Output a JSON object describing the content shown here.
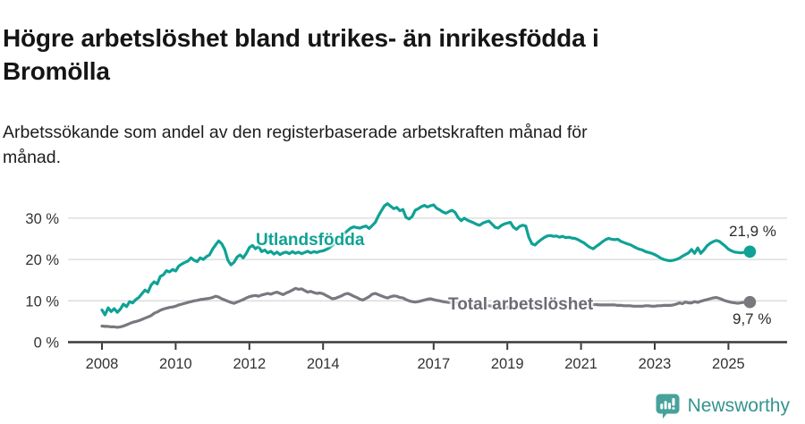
{
  "header": {
    "title": "Högre arbetslöshet bland utrikes- än inrikesfödda i\nBromölla",
    "subtitle": "Arbetssökande som andel av den registerbaserade arbetskraften månad för\nmånad."
  },
  "footer": {
    "brand": "Newsworthy"
  },
  "chart_data": {
    "type": "line",
    "title": "Högre arbetslöshet bland utrikes- än inrikesfödda i Bromölla",
    "subtitle": "Arbetssökande som andel av den registerbaserade arbetskraften månad för månad.",
    "unit": "%",
    "frequency": "monthly",
    "x_start_year": 2008,
    "x_end": "2025-08",
    "xlim": [
      2007.8,
      2025.9
    ],
    "ylim": [
      0,
      35
    ],
    "grid": "horizontal",
    "legend_position": "inline-annotations",
    "x_ticks": [
      {
        "year": 2008,
        "label": "2008"
      },
      {
        "year": 2010,
        "label": "2010"
      },
      {
        "year": 2012,
        "label": "2012"
      },
      {
        "year": 2014,
        "label": "2014"
      },
      {
        "year": 2017,
        "label": "2017"
      },
      {
        "year": 2019,
        "label": "2019"
      },
      {
        "year": 2021,
        "label": "2021"
      },
      {
        "year": 2023,
        "label": "2023"
      },
      {
        "year": 2025,
        "label": "2025"
      }
    ],
    "y_ticks": [
      {
        "value": 0,
        "label": "0 %"
      },
      {
        "value": 10,
        "label": "10 %"
      },
      {
        "value": 20,
        "label": "20 %"
      },
      {
        "value": 30,
        "label": "30 %"
      }
    ],
    "colors": {
      "utlandsfodda": "#0fa295",
      "total": "#7a777f",
      "grid": "#d9d9d9",
      "axis": "#3a3a3a",
      "axis_text": "#333333",
      "annotation_text": "#2a2a2a",
      "label_total_text": "#6d6a73",
      "brand": "#35948e"
    },
    "series": [
      {
        "id": "utlandsfodda",
        "name": "Utlandsfödda",
        "end_label": "21,9 %",
        "end_value": 21.9,
        "values": [
          7.8,
          6.6,
          8.3,
          7.4,
          8.1,
          7.2,
          8.0,
          9.2,
          8.6,
          9.8,
          9.5,
          10.3,
          10.8,
          11.7,
          12.6,
          12.1,
          13.8,
          14.6,
          14.1,
          15.9,
          16.3,
          17.3,
          17.0,
          17.6,
          17.2,
          18.4,
          18.9,
          19.3,
          19.6,
          20.4,
          19.8,
          19.5,
          20.4,
          20.0,
          20.7,
          21.1,
          22.5,
          23.5,
          24.5,
          23.8,
          22.4,
          19.8,
          18.7,
          19.3,
          20.6,
          21.1,
          20.4,
          21.5,
          22.9,
          23.4,
          22.6,
          23.2,
          21.9,
          22.3,
          21.6,
          22.0,
          21.3,
          21.8,
          21.2,
          21.6,
          21.8,
          21.4,
          21.9,
          21.5,
          21.8,
          21.4,
          21.7,
          22.0,
          21.6,
          21.9,
          21.7,
          22.0,
          22.1,
          22.4,
          22.8,
          23.4,
          24.0,
          24.7,
          25.5,
          26.3,
          27.0,
          27.6,
          27.9,
          27.7,
          27.6,
          27.9,
          28.1,
          27.5,
          28.2,
          29.0,
          30.5,
          31.8,
          33.0,
          33.5,
          32.9,
          32.3,
          32.6,
          31.8,
          32.1,
          30.2,
          29.8,
          30.4,
          31.9,
          32.3,
          32.8,
          33.1,
          32.7,
          33.0,
          33.2,
          32.4,
          32.0,
          31.5,
          31.2,
          31.6,
          31.9,
          31.4,
          30.1,
          29.4,
          30.0,
          29.5,
          29.2,
          28.9,
          28.5,
          28.3,
          28.8,
          29.1,
          29.3,
          28.6,
          27.8,
          27.6,
          28.2,
          28.6,
          28.8,
          29.0,
          27.8,
          27.3,
          28.0,
          28.3,
          28.1,
          25.4,
          23.8,
          23.5,
          24.2,
          24.8,
          25.3,
          25.7,
          25.8,
          25.6,
          25.7,
          25.4,
          25.6,
          25.3,
          25.4,
          25.2,
          25.1,
          24.8,
          24.4,
          24.0,
          23.4,
          22.9,
          22.6,
          23.2,
          23.7,
          24.3,
          24.8,
          25.1,
          24.9,
          24.8,
          24.9,
          24.4,
          24.1,
          23.8,
          23.6,
          23.2,
          22.8,
          22.5,
          22.3,
          21.9,
          21.7,
          21.5,
          21.2,
          20.8,
          20.3,
          20.0,
          19.8,
          19.7,
          19.8,
          20.0,
          20.3,
          20.8,
          21.2,
          21.6,
          22.4,
          21.5,
          22.8,
          21.5,
          22.3,
          23.3,
          23.9,
          24.3,
          24.6,
          24.4,
          23.8,
          23.2,
          22.5,
          22.1,
          21.8,
          21.7,
          21.6,
          21.7,
          21.8,
          21.9
        ]
      },
      {
        "id": "total",
        "name": "Total arbetslöshet",
        "end_label": "9,7 %",
        "end_value": 9.7,
        "values": [
          3.9,
          3.8,
          3.8,
          3.7,
          3.7,
          3.6,
          3.7,
          3.9,
          4.2,
          4.5,
          4.8,
          5.0,
          5.2,
          5.5,
          5.8,
          6.1,
          6.4,
          7.0,
          7.3,
          7.7,
          8.0,
          8.2,
          8.4,
          8.5,
          8.7,
          9.0,
          9.2,
          9.4,
          9.6,
          9.8,
          10.0,
          10.1,
          10.3,
          10.4,
          10.5,
          10.6,
          10.8,
          11.1,
          10.9,
          10.5,
          10.2,
          9.9,
          9.6,
          9.4,
          9.7,
          10.0,
          10.3,
          10.7,
          11.0,
          11.2,
          11.3,
          11.1,
          11.4,
          11.6,
          11.8,
          11.6,
          11.9,
          12.1,
          11.8,
          11.5,
          11.9,
          12.2,
          12.6,
          13.0,
          12.8,
          12.9,
          12.5,
          12.1,
          12.3,
          12.0,
          11.8,
          11.9,
          11.7,
          11.3,
          10.9,
          10.5,
          10.6,
          10.9,
          11.2,
          11.6,
          11.8,
          11.5,
          11.1,
          10.8,
          10.4,
          10.2,
          10.6,
          11.0,
          11.6,
          11.8,
          11.5,
          11.2,
          10.9,
          10.7,
          11.0,
          11.2,
          11.1,
          10.8,
          10.7,
          10.3,
          10.0,
          9.8,
          9.7,
          9.8,
          10.0,
          10.2,
          10.4,
          10.5,
          10.3,
          10.1,
          10.0,
          9.8,
          9.7,
          9.6,
          9.6,
          9.5,
          9.4,
          9.3,
          9.3,
          9.2,
          9.2,
          9.1,
          9.0,
          8.9,
          8.9,
          8.8,
          8.8,
          8.7,
          8.7,
          8.6,
          8.6,
          8.5,
          8.5,
          8.4,
          8.4,
          8.5,
          8.5,
          8.6,
          8.6,
          8.7,
          8.7,
          8.8,
          8.8,
          8.9,
          8.9,
          9.1,
          9.3,
          9.5,
          9.6,
          9.7,
          9.7,
          9.6,
          9.6,
          9.5,
          9.4,
          9.3,
          9.3,
          9.2,
          9.2,
          9.1,
          9.1,
          9.1,
          9.0,
          9.0,
          9.0,
          9.0,
          9.0,
          9.0,
          8.9,
          8.9,
          8.8,
          8.8,
          8.8,
          8.7,
          8.7,
          8.7,
          8.7,
          8.8,
          8.8,
          8.7,
          8.7,
          8.8,
          8.8,
          8.9,
          8.9,
          8.9,
          9.0,
          9.2,
          9.5,
          9.3,
          9.7,
          9.5,
          9.5,
          9.8,
          9.6,
          9.9,
          10.1,
          10.3,
          10.5,
          10.7,
          10.8,
          10.6,
          10.3,
          10.0,
          9.8,
          9.6,
          9.5,
          9.4,
          9.5,
          9.6,
          9.8,
          9.7
        ]
      }
    ]
  }
}
